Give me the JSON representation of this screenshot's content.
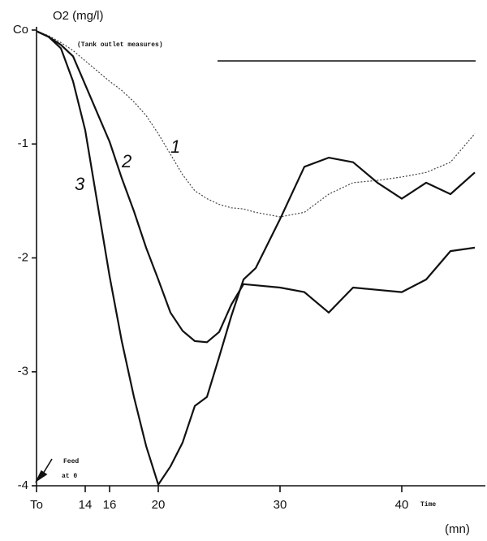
{
  "chart_data": {
    "type": "line",
    "y_label": "O2 (mg/l)",
    "x_label": "Time",
    "x_unit": "(mn)",
    "annotation": "(Tank outlet measures)",
    "feed_label": "Feed",
    "feed_at": "at 0",
    "xlim": [
      10,
      47
    ],
    "ylim": [
      -4,
      0
    ],
    "xticks": [
      {
        "value": 10,
        "label": "To"
      },
      14,
      16,
      20,
      30,
      40
    ],
    "yticks": [
      {
        "value": 0,
        "label": "Co"
      },
      -1,
      -2,
      -3,
      -4
    ],
    "x": [
      10,
      11,
      12,
      13,
      14,
      15,
      16,
      17,
      18,
      19,
      20,
      21,
      22,
      23,
      24,
      25,
      26,
      27,
      28,
      30,
      32,
      34,
      36,
      38,
      40,
      42,
      44,
      46
    ],
    "series": [
      {
        "name": "1",
        "color": "#444444",
        "style": "dotted",
        "values": [
          -0.01,
          -0.05,
          -0.11,
          -0.18,
          -0.27,
          -0.36,
          -0.45,
          -0.53,
          -0.63,
          -0.75,
          -0.91,
          -1.09,
          -1.27,
          -1.41,
          -1.48,
          -1.53,
          -1.56,
          -1.57,
          -1.6,
          -1.64,
          -1.6,
          -1.44,
          -1.34,
          -1.32,
          -1.29,
          -1.25,
          -1.16,
          -0.91
        ]
      },
      {
        "name": "2",
        "color": "#111111",
        "style": "solid",
        "values": [
          -0.01,
          -0.06,
          -0.13,
          -0.23,
          -0.48,
          -0.73,
          -0.98,
          -1.3,
          -1.59,
          -1.91,
          -2.19,
          -2.48,
          -2.64,
          -2.73,
          -2.74,
          -2.65,
          -2.41,
          -2.23,
          -2.24,
          -2.26,
          -2.3,
          -2.48,
          -2.26,
          -2.28,
          -2.3,
          -2.19,
          -1.94,
          -1.91
        ]
      },
      {
        "name": "3",
        "color": "#111111",
        "style": "solid",
        "values": [
          -0.01,
          -0.06,
          -0.16,
          -0.45,
          -0.88,
          -1.52,
          -2.16,
          -2.73,
          -3.22,
          -3.65,
          -3.99,
          -3.83,
          -3.62,
          -3.3,
          -3.22,
          -2.87,
          -2.51,
          -2.19,
          -2.09,
          -1.66,
          -1.2,
          -1.12,
          -1.16,
          -1.34,
          -1.48,
          -1.34,
          -1.44,
          -1.25
        ]
      }
    ]
  }
}
